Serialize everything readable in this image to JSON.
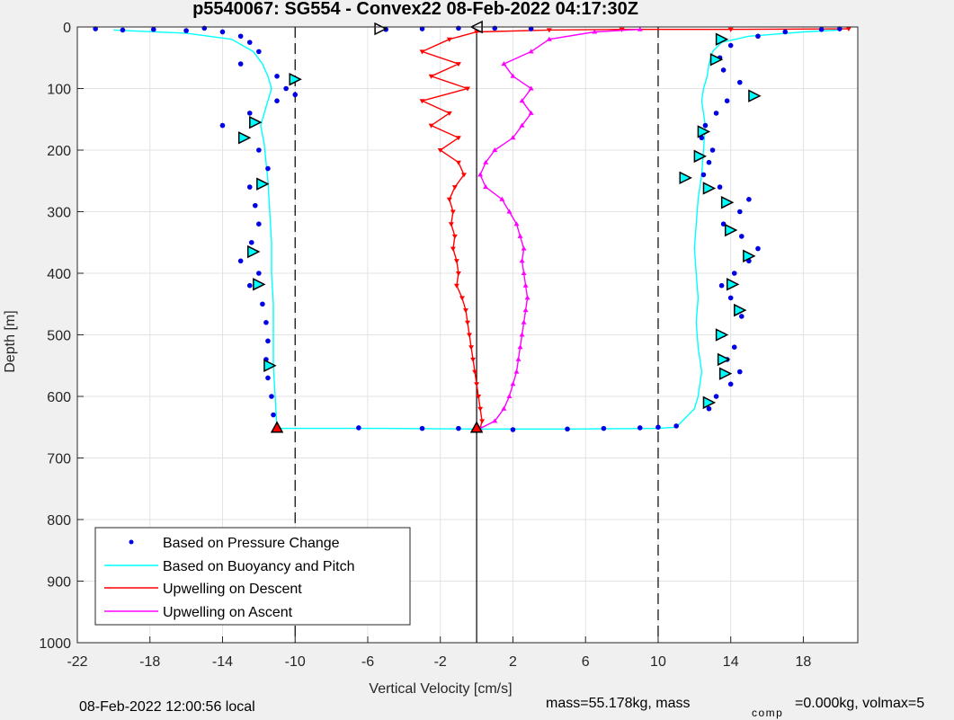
{
  "chart_data": {
    "type": "scatter",
    "title": "p5540067: SG554 - Convex22 08-Feb-2022 04:17:30Z",
    "xlabel": "Vertical Velocity [cm/s]",
    "ylabel": "Depth [m]",
    "xlim": [
      -22,
      21
    ],
    "ylim": [
      1000,
      0
    ],
    "y_reversed": true,
    "grid": true,
    "x_ticks": [
      -22,
      -18,
      -14,
      -10,
      -6,
      -2,
      2,
      6,
      10,
      14,
      18
    ],
    "y_ticks": [
      0,
      100,
      200,
      300,
      400,
      500,
      600,
      700,
      800,
      900,
      1000
    ],
    "reference_lines": [
      {
        "x": -10,
        "style": "dashed",
        "color": "#000000"
      },
      {
        "x": 0,
        "style": "solid",
        "color": "#000000"
      },
      {
        "x": 10,
        "style": "dashed",
        "color": "#000000"
      }
    ],
    "legend": {
      "position": "bottom-left",
      "entries": [
        {
          "label": "Based on Pressure Change",
          "color": "#0000e6",
          "marker": "dot"
        },
        {
          "label": "Based on Buoyancy and Pitch",
          "color": "#00ffff",
          "marker": "line"
        },
        {
          "label": "Upwelling on Descent",
          "color": "#ff0000",
          "marker": "line"
        },
        {
          "label": "Upwelling on Ascent",
          "color": "#ff00ff",
          "marker": "line"
        }
      ]
    },
    "series": [
      {
        "name": "Based on Pressure Change",
        "color": "#0000e6",
        "style": "dots",
        "points": [
          [
            -21.0,
            3
          ],
          [
            -19.5,
            5
          ],
          [
            -17.8,
            4
          ],
          [
            -16,
            6
          ],
          [
            -15,
            2
          ],
          [
            -14,
            8
          ],
          [
            -13,
            15
          ],
          [
            -12.5,
            25
          ],
          [
            -12,
            40
          ],
          [
            -13,
            60
          ],
          [
            -11,
            80
          ],
          [
            -10.5,
            100
          ],
          [
            -10,
            110
          ],
          [
            -11,
            120
          ],
          [
            -12.5,
            140
          ],
          [
            -14,
            160
          ],
          [
            -12.8,
            180
          ],
          [
            -12,
            200
          ],
          [
            -11.5,
            230
          ],
          [
            -12.5,
            260
          ],
          [
            -12.2,
            290
          ],
          [
            -12,
            320
          ],
          [
            -12.4,
            350
          ],
          [
            -13,
            380
          ],
          [
            -12,
            400
          ],
          [
            -12.5,
            420
          ],
          [
            -11.8,
            450
          ],
          [
            -11.6,
            480
          ],
          [
            -11.5,
            510
          ],
          [
            -11.6,
            540
          ],
          [
            -11.5,
            570
          ],
          [
            -11.3,
            600
          ],
          [
            -11.2,
            630
          ],
          [
            -11,
            650
          ],
          [
            -6.5,
            651
          ],
          [
            -3,
            652
          ],
          [
            -1,
            652
          ],
          [
            0,
            653
          ],
          [
            2,
            654
          ],
          [
            5,
            653
          ],
          [
            7,
            652
          ],
          [
            9,
            651
          ],
          [
            10,
            650
          ],
          [
            11,
            648
          ],
          [
            12.8,
            620
          ],
          [
            13.2,
            600
          ],
          [
            14,
            580
          ],
          [
            14.5,
            560
          ],
          [
            13.8,
            540
          ],
          [
            14.2,
            520
          ],
          [
            13.6,
            500
          ],
          [
            14.6,
            470
          ],
          [
            14,
            440
          ],
          [
            13.5,
            420
          ],
          [
            14.2,
            400
          ],
          [
            15,
            380
          ],
          [
            15.5,
            360
          ],
          [
            14.6,
            340
          ],
          [
            13.6,
            320
          ],
          [
            14.5,
            300
          ],
          [
            15,
            280
          ],
          [
            13.4,
            260
          ],
          [
            12.5,
            240
          ],
          [
            12.8,
            220
          ],
          [
            13,
            200
          ],
          [
            12.4,
            180
          ],
          [
            12.6,
            160
          ],
          [
            13.2,
            140
          ],
          [
            13.8,
            120
          ],
          [
            15.2,
            110
          ],
          [
            14.5,
            90
          ],
          [
            13.6,
            70
          ],
          [
            13.4,
            50
          ],
          [
            14,
            30
          ],
          [
            15.5,
            15
          ],
          [
            17,
            8
          ],
          [
            19,
            4
          ],
          [
            20,
            3
          ],
          [
            -5,
            4
          ],
          [
            -3,
            3
          ],
          [
            -1,
            2
          ],
          [
            1,
            2
          ],
          [
            3,
            3
          ]
        ]
      },
      {
        "name": "Based on Buoyancy and Pitch",
        "color": "#00ffff",
        "style": "line",
        "points": [
          [
            -20,
            5
          ],
          [
            -16,
            10
          ],
          [
            -13.5,
            20
          ],
          [
            -12.3,
            40
          ],
          [
            -11.8,
            60
          ],
          [
            -11.5,
            80
          ],
          [
            -11.3,
            100
          ],
          [
            -11.6,
            130
          ],
          [
            -11.9,
            160
          ],
          [
            -11.7,
            190
          ],
          [
            -11.6,
            220
          ],
          [
            -11.5,
            250
          ],
          [
            -11.4,
            300
          ],
          [
            -11.3,
            350
          ],
          [
            -11.3,
            400
          ],
          [
            -11.2,
            450
          ],
          [
            -11.2,
            500
          ],
          [
            -11.2,
            550
          ],
          [
            -11.1,
            600
          ],
          [
            -11,
            652
          ],
          [
            -5,
            652
          ],
          [
            0,
            653
          ],
          [
            5,
            653
          ],
          [
            10,
            652
          ],
          [
            11,
            650
          ],
          [
            12,
            620
          ],
          [
            12.2,
            600
          ],
          [
            12.4,
            560
          ],
          [
            12.2,
            520
          ],
          [
            12.1,
            480
          ],
          [
            12.2,
            440
          ],
          [
            12.1,
            400
          ],
          [
            12,
            360
          ],
          [
            12.1,
            320
          ],
          [
            12.2,
            280
          ],
          [
            12.4,
            240
          ],
          [
            12.5,
            200
          ],
          [
            12.6,
            160
          ],
          [
            12.4,
            120
          ],
          [
            12.5,
            100
          ],
          [
            12.7,
            80
          ],
          [
            12.8,
            60
          ],
          [
            13,
            40
          ],
          [
            13.5,
            25
          ],
          [
            15,
            15
          ],
          [
            18,
            8
          ],
          [
            20,
            5
          ]
        ]
      },
      {
        "name": "Upwelling on Descent",
        "color": "#ff0000",
        "style": "line-triangles",
        "points": [
          [
            20.5,
            3
          ],
          [
            14,
            4
          ],
          [
            8,
            4
          ],
          [
            4,
            5
          ],
          [
            0,
            8
          ],
          [
            -1.5,
            20
          ],
          [
            -3,
            40
          ],
          [
            -1,
            60
          ],
          [
            -2.5,
            80
          ],
          [
            -0.5,
            100
          ],
          [
            -3,
            120
          ],
          [
            -1.5,
            140
          ],
          [
            -2.5,
            160
          ],
          [
            -1,
            180
          ],
          [
            -2,
            200
          ],
          [
            -1,
            220
          ],
          [
            -0.7,
            240
          ],
          [
            -1.2,
            260
          ],
          [
            -1.5,
            280
          ],
          [
            -1.3,
            300
          ],
          [
            -1.4,
            320
          ],
          [
            -1.2,
            340
          ],
          [
            -1.3,
            360
          ],
          [
            -1.1,
            380
          ],
          [
            -1,
            400
          ],
          [
            -1.1,
            420
          ],
          [
            -0.8,
            440
          ],
          [
            -0.6,
            460
          ],
          [
            -0.5,
            480
          ],
          [
            -0.4,
            500
          ],
          [
            -0.3,
            520
          ],
          [
            -0.2,
            540
          ],
          [
            -0.1,
            560
          ],
          [
            0,
            580
          ],
          [
            0.1,
            600
          ],
          [
            0.2,
            620
          ],
          [
            0.3,
            640
          ],
          [
            0.2,
            652
          ]
        ]
      },
      {
        "name": "Upwelling on Ascent",
        "color": "#ff00ff",
        "style": "line-triangles",
        "points": [
          [
            0.2,
            652
          ],
          [
            1,
            640
          ],
          [
            1.5,
            620
          ],
          [
            1.8,
            600
          ],
          [
            2,
            580
          ],
          [
            2.2,
            560
          ],
          [
            2.3,
            540
          ],
          [
            2.4,
            520
          ],
          [
            2.5,
            500
          ],
          [
            2.6,
            480
          ],
          [
            2.7,
            460
          ],
          [
            2.8,
            440
          ],
          [
            2.7,
            420
          ],
          [
            2.6,
            400
          ],
          [
            2.5,
            380
          ],
          [
            2.6,
            360
          ],
          [
            2.4,
            340
          ],
          [
            2.2,
            320
          ],
          [
            1.8,
            300
          ],
          [
            1.4,
            280
          ],
          [
            0.5,
            260
          ],
          [
            0.2,
            240
          ],
          [
            0.5,
            220
          ],
          [
            1,
            200
          ],
          [
            2,
            180
          ],
          [
            2.5,
            160
          ],
          [
            3,
            140
          ],
          [
            2.5,
            120
          ],
          [
            3,
            100
          ],
          [
            2,
            80
          ],
          [
            1.5,
            60
          ],
          [
            3,
            40
          ],
          [
            4,
            20
          ],
          [
            6.5,
            8
          ],
          [
            9,
            4
          ]
        ]
      }
    ],
    "markers": [
      {
        "shape": "right-triangle",
        "x": -5.3,
        "y": 3,
        "fill": "#ffffff"
      },
      {
        "shape": "left-triangle",
        "x": 0,
        "y": 0,
        "fill": "#ffffff"
      },
      {
        "shape": "right-triangle",
        "x": -10.0,
        "y": 85,
        "fill": "#00ffff"
      },
      {
        "shape": "right-triangle",
        "x": -12.2,
        "y": 155,
        "fill": "#00ffff"
      },
      {
        "shape": "right-triangle",
        "x": -12.8,
        "y": 180,
        "fill": "#00ffff"
      },
      {
        "shape": "right-triangle",
        "x": -11.8,
        "y": 255,
        "fill": "#00ffff"
      },
      {
        "shape": "right-triangle",
        "x": -12.3,
        "y": 365,
        "fill": "#00ffff"
      },
      {
        "shape": "right-triangle",
        "x": -12.0,
        "y": 418,
        "fill": "#00ffff"
      },
      {
        "shape": "right-triangle",
        "x": -11.4,
        "y": 550,
        "fill": "#00ffff"
      },
      {
        "shape": "up-triangle",
        "x": -11.0,
        "y": 651,
        "fill": "#ff0000"
      },
      {
        "shape": "up-triangle",
        "x": 0.0,
        "y": 651,
        "fill": "#ff0000"
      },
      {
        "shape": "right-triangle",
        "x": 13.5,
        "y": 20,
        "fill": "#00ffff"
      },
      {
        "shape": "right-triangle",
        "x": 13.2,
        "y": 53,
        "fill": "#00ffff"
      },
      {
        "shape": "right-triangle",
        "x": 15.3,
        "y": 112,
        "fill": "#00ffff"
      },
      {
        "shape": "right-triangle",
        "x": 12.5,
        "y": 170,
        "fill": "#00ffff"
      },
      {
        "shape": "right-triangle",
        "x": 12.3,
        "y": 210,
        "fill": "#00ffff"
      },
      {
        "shape": "right-triangle",
        "x": 11.5,
        "y": 245,
        "fill": "#00ffff"
      },
      {
        "shape": "right-triangle",
        "x": 12.8,
        "y": 262,
        "fill": "#00ffff"
      },
      {
        "shape": "right-triangle",
        "x": 13.8,
        "y": 285,
        "fill": "#00ffff"
      },
      {
        "shape": "right-triangle",
        "x": 14.0,
        "y": 330,
        "fill": "#00ffff"
      },
      {
        "shape": "right-triangle",
        "x": 15.0,
        "y": 372,
        "fill": "#00ffff"
      },
      {
        "shape": "right-triangle",
        "x": 14.1,
        "y": 418,
        "fill": "#00ffff"
      },
      {
        "shape": "right-triangle",
        "x": 14.5,
        "y": 460,
        "fill": "#00ffff"
      },
      {
        "shape": "right-triangle",
        "x": 13.5,
        "y": 500,
        "fill": "#00ffff"
      },
      {
        "shape": "right-triangle",
        "x": 13.6,
        "y": 540,
        "fill": "#00ffff"
      },
      {
        "shape": "right-triangle",
        "x": 13.7,
        "y": 563,
        "fill": "#00ffff"
      },
      {
        "shape": "right-triangle",
        "x": 12.8,
        "y": 610,
        "fill": "#00ffff"
      }
    ]
  },
  "footer": {
    "local_time": "08-Feb-2022 12:00:56 local",
    "mass_text": "mass=55.178kg, mass",
    "comp_subscript": "comp",
    "comp_text": "=0.000kg, volmax=5"
  }
}
